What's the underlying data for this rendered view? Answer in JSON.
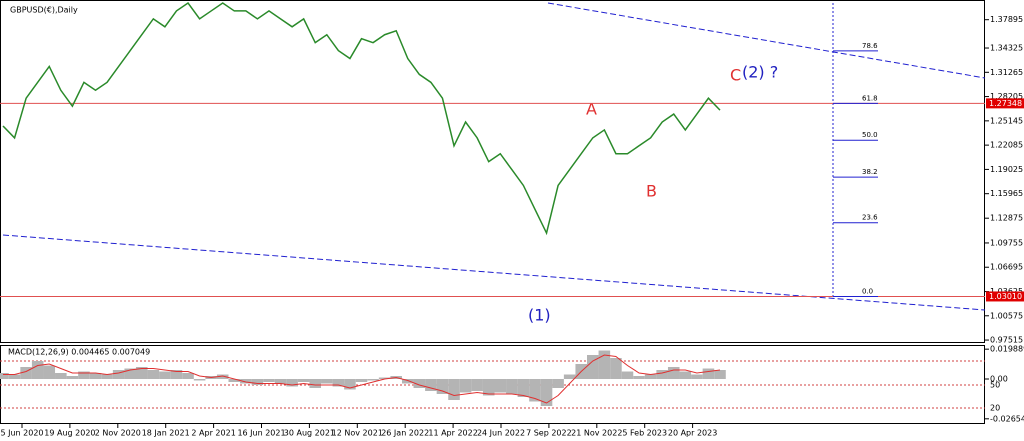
{
  "chart_data": {
    "type": "line",
    "title": "GBPUSD(€),Daily",
    "x_labels": [
      "5 Jun 2020",
      "19 Aug 2020",
      "2 Nov 2020",
      "18 Jan 2021",
      "2 Apr 2021",
      "16 Jun 2021",
      "30 Aug 2021",
      "12 Nov 2021",
      "26 Jan 2022",
      "11 Apr 2022",
      "24 Jun 2022",
      "7 Sep 2022",
      "21 Nov 2022",
      "5 Feb 2023",
      "20 Apr 2023"
    ],
    "series": [
      {
        "color": "#2a8a2a",
        "values": [
          1.245,
          1.23,
          1.28,
          1.3,
          1.32,
          1.29,
          1.27,
          1.3,
          1.29,
          1.3,
          1.32,
          1.34,
          1.36,
          1.38,
          1.37,
          1.39,
          1.4,
          1.38,
          1.39,
          1.4,
          1.39,
          1.39,
          1.38,
          1.39,
          1.38,
          1.37,
          1.38,
          1.35,
          1.36,
          1.34,
          1.33,
          1.355,
          1.35,
          1.36,
          1.365,
          1.33,
          1.31,
          1.3,
          1.28,
          1.22,
          1.25,
          1.23,
          1.2,
          1.21,
          1.19,
          1.17,
          1.14,
          1.11,
          1.17,
          1.19,
          1.21,
          1.23,
          1.24,
          1.21,
          1.21,
          1.22,
          1.23,
          1.25,
          1.26,
          1.24,
          1.26,
          1.28,
          1.265
        ]
      }
    ],
    "ylim": [
      0.9727,
      1.4
    ],
    "yticks": [
      1.37895,
      1.34325,
      1.31265,
      1.28205,
      1.25145,
      1.22085,
      1.19025,
      1.15965,
      1.12875,
      1.09755,
      1.06695,
      1.03625,
      1.00575,
      0.97515
    ],
    "price_lines": [
      {
        "value": 1.27348,
        "label": "1.27348"
      },
      {
        "value": 1.0301,
        "label": "1.03010"
      }
    ],
    "fib_range": [
      1.0301,
      1.424
    ],
    "fib_levels": [
      78.6,
      61.8,
      {
        "value": 50,
        "label": "50.0"
      },
      38.2,
      23.6,
      {
        "value": 0,
        "label": "0.0"
      }
    ],
    "waves": [
      "(1)",
      "A",
      "B",
      "C",
      "(2) ?"
    ],
    "macd": {
      "title": "MACD(12,26,9) 0.004465 0.007049",
      "ylim": [
        -0.03,
        0.022
      ],
      "yticks": [
        0.019889,
        {
          "value": 0,
          "label": "0.00"
        },
        -0.026542
      ],
      "oscillator_labels": [
        "50",
        "20"
      ],
      "histogram": {
        "color": "#b4b4b4",
        "values": [
          0.004,
          0.003,
          0.008,
          0.012,
          0.009,
          0.004,
          0.002,
          0.005,
          0.004,
          0.003,
          0.006,
          0.007,
          0.008,
          0.006,
          0.005,
          0.006,
          0.004,
          -0.001,
          0.002,
          0.003,
          -0.002,
          -0.003,
          -0.004,
          -0.002,
          -0.003,
          -0.005,
          -0.002,
          -0.006,
          -0.003,
          -0.005,
          -0.007,
          -0.002,
          -0.001,
          0.001,
          0.002,
          -0.003,
          -0.006,
          -0.008,
          -0.01,
          -0.014,
          -0.009,
          -0.008,
          -0.011,
          -0.009,
          -0.01,
          -0.012,
          -0.015,
          -0.018,
          -0.006,
          0.003,
          0.01,
          0.016,
          0.019,
          0.014,
          0.005,
          0.002,
          0.003,
          0.006,
          0.008,
          0.005,
          0.003,
          0.007,
          0.006
        ]
      },
      "signal": {
        "color": "#e03030",
        "values": [
          0.003,
          0.003,
          0.005,
          0.009,
          0.01,
          0.007,
          0.004,
          0.004,
          0.004,
          0.003,
          0.004,
          0.006,
          0.007,
          0.007,
          0.006,
          0.005,
          0.005,
          0.002,
          0.001,
          0.002,
          0,
          -0.002,
          -0.003,
          -0.003,
          -0.003,
          -0.004,
          -0.003,
          -0.004,
          -0.004,
          -0.004,
          -0.006,
          -0.004,
          -0.002,
          0,
          0.001,
          -0.001,
          -0.004,
          -0.006,
          -0.008,
          -0.011,
          -0.01,
          -0.009,
          -0.01,
          -0.01,
          -0.01,
          -0.011,
          -0.013,
          -0.016,
          -0.011,
          -0.003,
          0.005,
          0.012,
          0.016,
          0.015,
          0.009,
          0.004,
          0.003,
          0.004,
          0.006,
          0.006,
          0.004,
          0.005,
          0.006
        ]
      }
    }
  }
}
